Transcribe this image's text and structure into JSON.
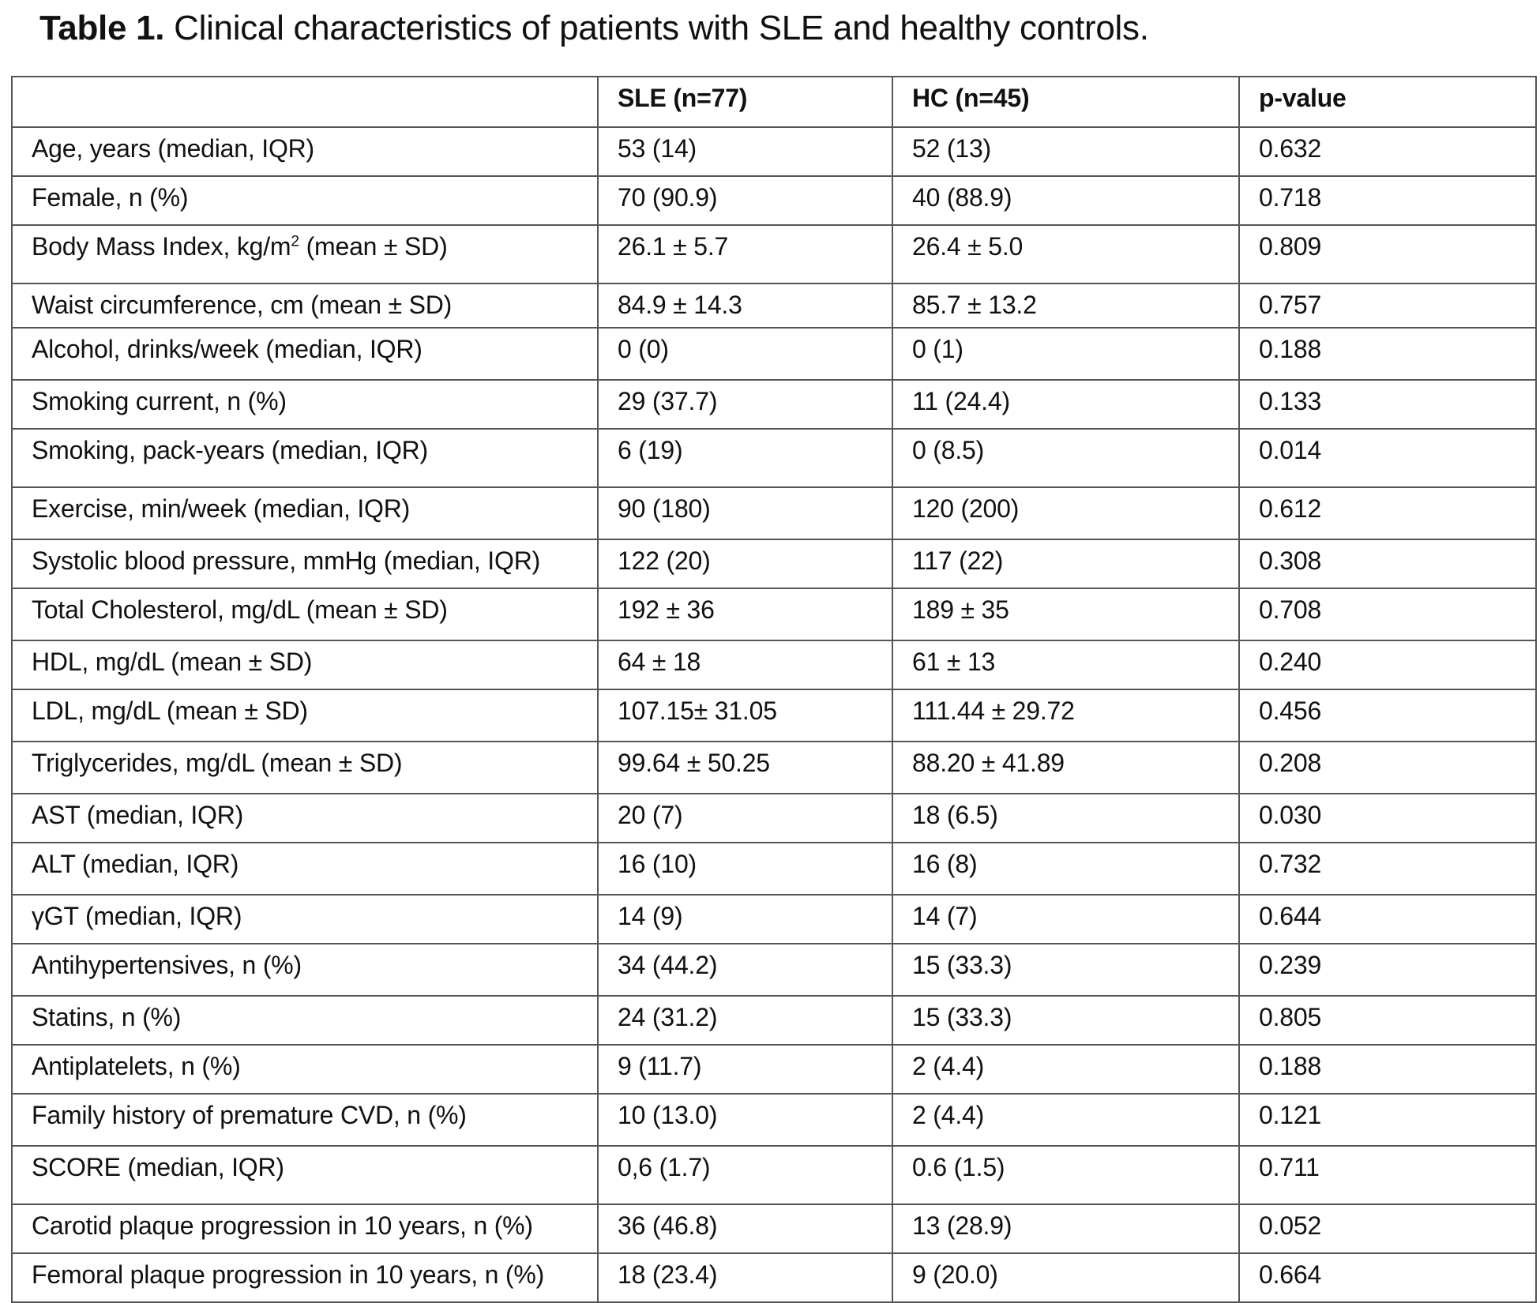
{
  "caption": {
    "label": "Table 1.",
    "text": "Clinical characteristics of patients with SLE and healthy controls."
  },
  "table": {
    "headers": [
      "",
      "SLE (n=77)",
      "HC (n=45)",
      "p-value"
    ],
    "rows": [
      {
        "label": "Age, years (median, IQR)",
        "sle": "53 (14)",
        "hc": "52 (13)",
        "p": "0.632"
      },
      {
        "label": "Female, n (%)",
        "sle": "70 (90.9)",
        "hc": "40 (88.9)",
        "p": "0.718"
      },
      {
        "label_pre": "Body Mass Index, kg/m",
        "label_sup": "2",
        "label_post": " (mean ± SD)",
        "sle": "26.1 ± 5.7",
        "hc": "26.4 ± 5.0",
        "p": "0.809"
      },
      {
        "label": "Waist circumference, cm (mean ± SD)",
        "sle": "84.9 ± 14.3",
        "hc": "85.7 ± 13.2",
        "p": "0.757"
      },
      {
        "label": "Alcohol, drinks/week (median, IQR)",
        "sle": "0 (0)",
        "hc": "0 (1)",
        "p": "0.188"
      },
      {
        "label": "Smoking current, n (%)",
        "sle": "29 (37.7)",
        "hc": "11 (24.4)",
        "p": "0.133"
      },
      {
        "label": "Smoking, pack-years (median, IQR)",
        "sle": "6 (19)",
        "hc": "0 (8.5)",
        "p": "0.014"
      },
      {
        "label": "Exercise, min/week (median, IQR)",
        "sle": "90 (180)",
        "hc": "120 (200)",
        "p": "0.612"
      },
      {
        "label": "Systolic blood pressure, mmHg (median, IQR)",
        "sle": "122 (20)",
        "hc": "117 (22)",
        "p": "0.308"
      },
      {
        "label": "Total Cholesterol, mg/dL (mean ± SD)",
        "sle": "192 ± 36",
        "hc": "189 ± 35",
        "p": "0.708"
      },
      {
        "label": "HDL, mg/dL (mean ± SD)",
        "sle": "64 ± 18",
        "hc": "61 ± 13",
        "p": "0.240"
      },
      {
        "label": "LDL, mg/dL (mean ± SD)",
        "sle": "107.15± 31.05",
        "hc": "111.44 ± 29.72",
        "p": "0.456"
      },
      {
        "label": "Triglycerides, mg/dL (mean ± SD)",
        "sle": "99.64 ± 50.25",
        "hc": "88.20 ± 41.89",
        "p": "0.208"
      },
      {
        "label": "AST (median, IQR)",
        "sle": "20 (7)",
        "hc": "18 (6.5)",
        "p": "0.030"
      },
      {
        "label": "ALT (median, IQR)",
        "sle": "16 (10)",
        "hc": "16 (8)",
        "p": "0.732"
      },
      {
        "label": "γGT (median, IQR)",
        "sle": "14 (9)",
        "hc": "14 (7)",
        "p": "0.644"
      },
      {
        "label": "Antihypertensives, n (%)",
        "sle": "34 (44.2)",
        "hc": "15 (33.3)",
        "p": "0.239"
      },
      {
        "label": "Statins, n (%)",
        "sle": "24 (31.2)",
        "hc": "15 (33.3)",
        "p": "0.805"
      },
      {
        "label": "Antiplatelets, n (%)",
        "sle": "9 (11.7)",
        "hc": "2 (4.4)",
        "p": "0.188"
      },
      {
        "label": "Family history of premature CVD, n (%)",
        "sle": "10 (13.0)",
        "hc": "2 (4.4)",
        "p": "0.121"
      },
      {
        "label": "SCORE (median, IQR)",
        "sle": "0,6 (1.7)",
        "hc": "0.6 (1.5)",
        "p": "0.711"
      },
      {
        "label": "Carotid plaque progression in 10 years, n (%)",
        "sle": "36 (46.8)",
        "hc": "13 (28.9)",
        "p": "0.052"
      },
      {
        "label": "Femoral plaque progression in 10 years, n (%)",
        "sle": "18 (23.4)",
        "hc": "9 (20.0)",
        "p": "0.664"
      }
    ]
  }
}
